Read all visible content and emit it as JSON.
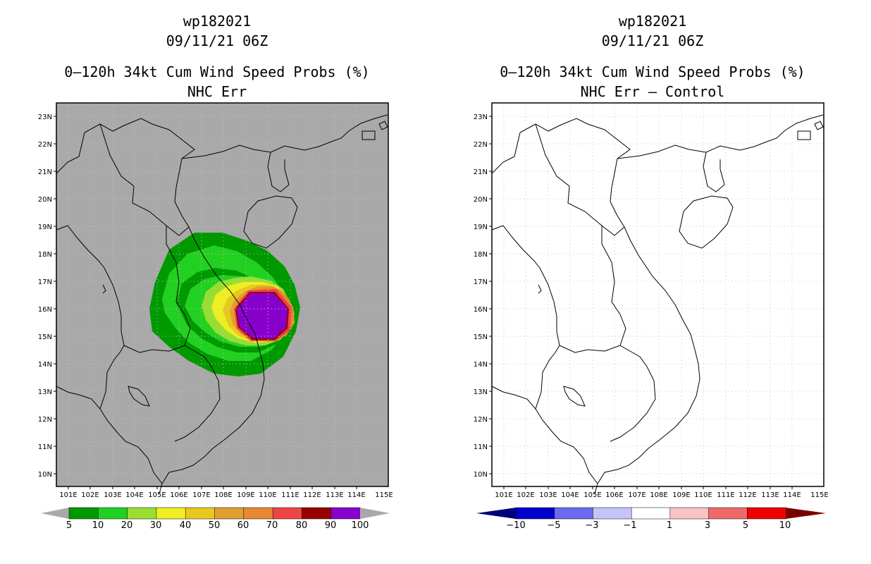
{
  "left_panel": {
    "title_line1": "wp182021",
    "title_line2": "09/11/21 06Z",
    "title_line3": "0–120h 34kt Cum Wind Speed Probs (%)",
    "title_line4": "NHC Err",
    "colorbar_labels": [
      "5",
      "10",
      "20",
      "30",
      "40",
      "50",
      "60",
      "70",
      "80",
      "90",
      "100"
    ],
    "colorbar_colors": [
      "#009900",
      "#22d022",
      "#99dd33",
      "#eeee22",
      "#e8c820",
      "#e0a030",
      "#e88830",
      "#ee4444",
      "#990000",
      "#8800cc"
    ],
    "background_color": "#a9a9a9"
  },
  "right_panel": {
    "title_line1": "wp182021",
    "title_line2": "09/11/21 06Z",
    "title_line3": "0–120h 34kt Cum Wind Speed Probs (%)",
    "title_line4": "NHC Err – Control",
    "colorbar_labels": [
      "−10",
      "−5",
      "−3",
      "−1",
      "1",
      "3",
      "5",
      "10"
    ],
    "colorbar_colors": [
      "#0000cc",
      "#6a6aee",
      "#c4c4f8",
      "#ffffff",
      "#f8c4c4",
      "#ee6a6a",
      "#ee0000"
    ],
    "background_color": "#ffffff"
  },
  "axes": {
    "lon_labels": [
      "101E",
      "102E",
      "103E",
      "104E",
      "105E",
      "106E",
      "107E",
      "108E",
      "109E",
      "110E",
      "111E",
      "112E",
      "113E",
      "114E",
      "115E"
    ],
    "lat_labels": [
      "23N",
      "22N",
      "21N",
      "20N",
      "19N",
      "18N",
      "17N",
      "16N",
      "15N",
      "14N",
      "13N",
      "12N",
      "11N",
      "10N"
    ]
  }
}
